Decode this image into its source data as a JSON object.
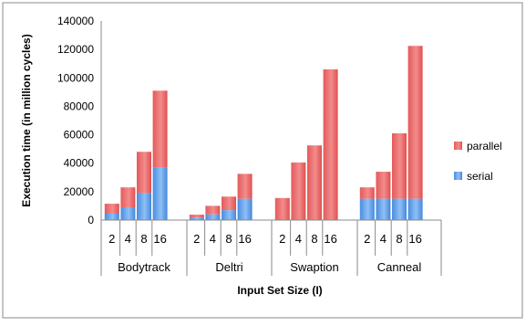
{
  "chart_data": {
    "type": "bar",
    "stacked": true,
    "y_axis_label": "Execution time (in million cycles)",
    "x_axis_label": "Input Set Size (I)",
    "ylim": [
      0,
      140000
    ],
    "y_ticks": [
      0,
      20000,
      40000,
      60000,
      80000,
      100000,
      120000,
      140000
    ],
    "y_tick_labels": [
      "0",
      "20000",
      "40000",
      "60000",
      "80000",
      "100000",
      "120000",
      "140000"
    ],
    "grid": "none",
    "legend_position": "right",
    "groups": [
      {
        "name": "Bodytrack",
        "sizes": [
          "2",
          "4",
          "8",
          "16"
        ]
      },
      {
        "name": "Deltri",
        "sizes": [
          "2",
          "4",
          "8",
          "16"
        ]
      },
      {
        "name": "Swaption",
        "sizes": [
          "2",
          "4",
          "8",
          "16"
        ]
      },
      {
        "name": "Canneal",
        "sizes": [
          "2",
          "4",
          "8",
          "16"
        ]
      }
    ],
    "series": [
      {
        "name": "serial",
        "color": "#5b9be6",
        "values": [
          4500,
          9000,
          19000,
          37000,
          1800,
          4000,
          7000,
          15000,
          0,
          0,
          0,
          0,
          15000,
          15000,
          15000,
          15000
        ]
      },
      {
        "name": "parallel",
        "color": "#e96a6a",
        "values": [
          7000,
          14000,
          29000,
          54000,
          2000,
          6000,
          9500,
          17500,
          15500,
          40500,
          52500,
          106000,
          8000,
          19000,
          46000,
          107500
        ]
      }
    ],
    "legend": [
      {
        "name": "parallel",
        "color": "#e96a6a"
      },
      {
        "name": "serial",
        "color": "#5b9be6"
      }
    ]
  }
}
